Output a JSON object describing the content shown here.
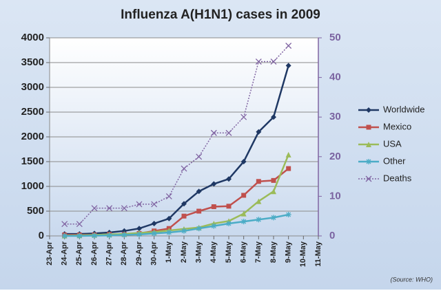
{
  "chart_data": {
    "type": "line",
    "title": "Influenza A(H1N1) cases in 2009",
    "source": "(Source: WHO)",
    "categories": [
      "23-Apr",
      "24-Apr",
      "25-Apr",
      "26-Apr",
      "27-Apr",
      "28-Apr",
      "29-Apr",
      "30-Apr",
      "1-May",
      "2-May",
      "3-May",
      "4-May",
      "5-May",
      "6-May",
      "7-May",
      "8-May",
      "9-May",
      "10-May",
      "11-May"
    ],
    "series": [
      {
        "name": "Worldwide",
        "color": "#1f3864",
        "marker": "diamond",
        "values": [
          null,
          40,
          40,
          50,
          70,
          100,
          150,
          250,
          350,
          650,
          900,
          1050,
          1150,
          1500,
          2100,
          2400,
          3440,
          null,
          null
        ]
      },
      {
        "name": "Mexico",
        "color": "#c0504d",
        "marker": "square",
        "values": [
          null,
          20,
          20,
          20,
          30,
          30,
          50,
          100,
          150,
          400,
          500,
          590,
          600,
          820,
          1100,
          1120,
          1360,
          null,
          null
        ]
      },
      {
        "name": "USA",
        "color": "#9bbb59",
        "marker": "triangle",
        "values": [
          null,
          5,
          10,
          20,
          30,
          40,
          60,
          80,
          110,
          140,
          170,
          250,
          300,
          450,
          700,
          900,
          1640,
          null,
          null
        ]
      },
      {
        "name": "Other",
        "color": "#4bacc6",
        "marker": "star",
        "values": [
          null,
          0,
          0,
          5,
          10,
          20,
          30,
          50,
          70,
          100,
          150,
          200,
          250,
          290,
          330,
          370,
          430,
          null,
          null
        ]
      },
      {
        "name": "Deaths",
        "color": "#8064a2",
        "marker": "cross",
        "dashed": true,
        "axis": "y2",
        "values": [
          null,
          3,
          3,
          7,
          7,
          7,
          8,
          8,
          10,
          17,
          20,
          26,
          26,
          30,
          44,
          44,
          48,
          null,
          null
        ]
      }
    ],
    "ylim": [
      0,
      4000
    ],
    "yticks": [
      0,
      500,
      1000,
      1500,
      2000,
      2500,
      3000,
      3500,
      4000
    ],
    "y2lim": [
      0,
      50
    ],
    "y2ticks": [
      0,
      10,
      20,
      30,
      40,
      50
    ],
    "grid": true,
    "legend": "right"
  }
}
